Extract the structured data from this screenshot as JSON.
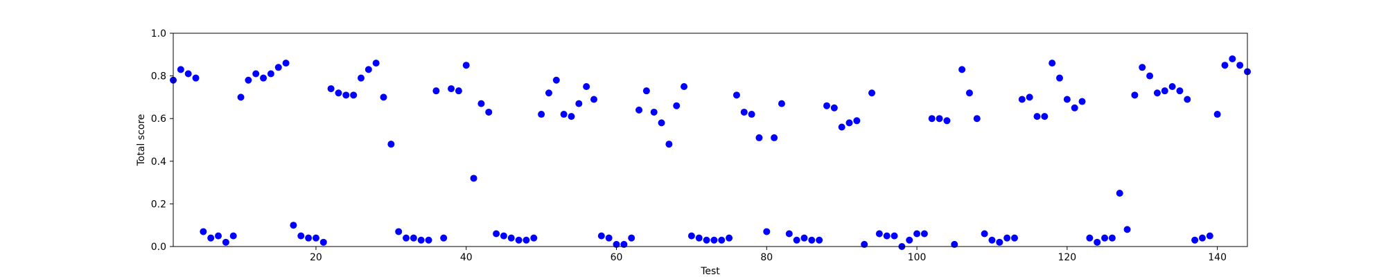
{
  "chart_data": {
    "type": "scatter",
    "xlabel": "Test",
    "ylabel": "Total score",
    "xlim": [
      1,
      144
    ],
    "ylim": [
      0.0,
      1.0
    ],
    "x_ticks": [
      "20",
      "40",
      "60",
      "80",
      "100",
      "120",
      "140"
    ],
    "y_ticks": [
      "0.0",
      "0.2",
      "0.4",
      "0.6",
      "0.8",
      "1.0"
    ],
    "grid": false,
    "marker_color": "#0000ff",
    "series": [
      {
        "x": [
          1,
          2,
          3,
          4,
          5,
          6,
          7,
          8,
          9,
          10,
          11,
          12,
          13,
          14,
          15,
          16,
          17,
          18,
          19,
          20,
          21,
          22,
          23,
          24,
          25,
          26,
          27,
          28,
          29,
          30,
          31,
          32,
          33,
          34,
          35,
          36,
          37,
          38,
          39,
          40,
          41,
          42,
          43,
          44,
          45,
          46,
          47,
          48,
          49,
          50,
          51,
          52,
          53,
          54,
          55,
          56,
          57,
          58,
          59,
          60,
          61,
          62,
          63,
          64,
          65,
          66,
          67,
          68,
          69,
          70,
          71,
          72,
          73,
          74,
          75,
          76,
          77,
          78,
          79,
          80,
          81,
          82,
          83,
          84,
          85,
          86,
          87,
          88,
          89,
          90,
          91,
          92,
          93,
          94,
          95,
          96,
          97,
          98,
          99,
          100,
          101,
          102,
          103,
          104,
          105,
          106,
          107,
          108,
          109,
          110,
          111,
          112,
          113,
          114,
          115,
          116,
          117,
          118,
          119,
          120,
          121,
          122,
          123,
          124,
          125,
          126,
          127,
          128,
          129,
          130,
          131,
          132,
          133,
          134,
          135,
          136,
          137,
          138,
          139,
          140,
          141,
          142,
          143,
          144
        ],
        "y": [
          0.78,
          0.83,
          0.81,
          0.79,
          0.07,
          0.04,
          0.05,
          0.02,
          0.05,
          0.7,
          0.78,
          0.81,
          0.79,
          0.81,
          0.84,
          0.86,
          0.1,
          0.05,
          0.04,
          0.04,
          0.02,
          0.74,
          0.72,
          0.71,
          0.71,
          0.79,
          0.83,
          0.86,
          0.7,
          0.48,
          0.07,
          0.04,
          0.04,
          0.03,
          0.03,
          0.73,
          0.04,
          0.74,
          0.73,
          0.85,
          0.32,
          0.67,
          0.63,
          0.06,
          0.05,
          0.04,
          0.03,
          0.03,
          0.04,
          0.62,
          0.72,
          0.78,
          0.62,
          0.61,
          0.67,
          0.75,
          0.69,
          0.05,
          0.04,
          0.01,
          0.01,
          0.04,
          0.64,
          0.73,
          0.63,
          0.58,
          0.48,
          0.66,
          0.75,
          0.05,
          0.04,
          0.03,
          0.03,
          0.03,
          0.04,
          0.71,
          0.63,
          0.62,
          0.51,
          0.07,
          0.51,
          0.67,
          0.06,
          0.03,
          0.04,
          0.03,
          0.03,
          0.66,
          0.65,
          0.56,
          0.58,
          0.59,
          0.01,
          0.72,
          0.06,
          0.05,
          0.05,
          0.0,
          0.03,
          0.06,
          0.06,
          0.6,
          0.6,
          0.59,
          0.01,
          0.83,
          0.72,
          0.6,
          0.06,
          0.03,
          0.02,
          0.04,
          0.04,
          0.69,
          0.7,
          0.61,
          0.61,
          0.86,
          0.79,
          0.69,
          0.65,
          0.68,
          0.04,
          0.02,
          0.04,
          0.04,
          0.25,
          0.08,
          0.71,
          0.84,
          0.8,
          0.72,
          0.73,
          0.75,
          0.73,
          0.69,
          0.03,
          0.04,
          0.05,
          0.62,
          0.85,
          0.88,
          0.85,
          0.82
        ]
      }
    ]
  }
}
